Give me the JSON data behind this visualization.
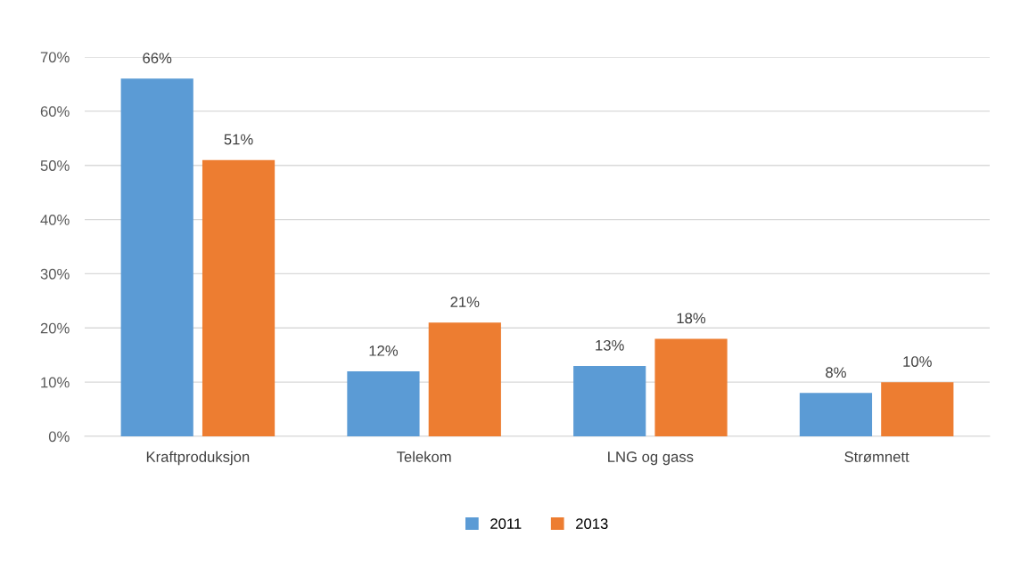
{
  "chart_data": {
    "type": "bar",
    "categories": [
      "Kraftproduksjon",
      "Telekom",
      "LNG og gass",
      "Strømnett"
    ],
    "series": [
      {
        "name": "2011",
        "color": "#5b9bd5",
        "values": [
          66,
          12,
          13,
          8
        ],
        "value_labels": [
          "66%",
          "12%",
          "13%",
          "8%"
        ]
      },
      {
        "name": "2013",
        "color": "#ed7d31",
        "values": [
          51,
          21,
          18,
          10
        ],
        "value_labels": [
          "51%",
          "21%",
          "18%",
          "10%"
        ]
      }
    ],
    "ylim": [
      0,
      70
    ],
    "yticks": [
      {
        "value": 0,
        "label": "0%"
      },
      {
        "value": 10,
        "label": "10%"
      },
      {
        "value": 20,
        "label": "20%"
      },
      {
        "value": 30,
        "label": "30%"
      },
      {
        "value": 40,
        "label": "40%"
      },
      {
        "value": 50,
        "label": "50%"
      },
      {
        "value": 60,
        "label": "60%"
      },
      {
        "value": 70,
        "label": "70%"
      }
    ],
    "grid": "y",
    "legend": "bottom"
  }
}
